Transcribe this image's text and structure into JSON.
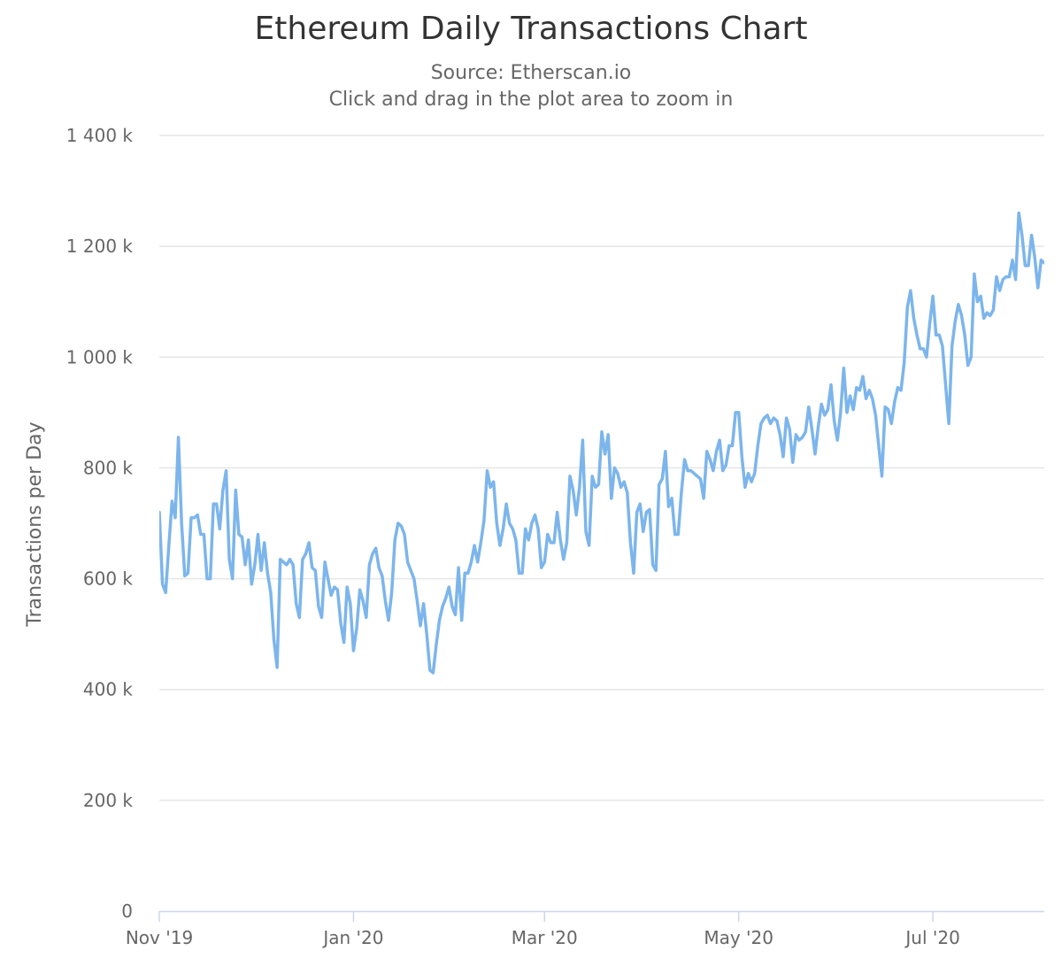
{
  "chart_data": {
    "type": "line",
    "title": "Ethereum Daily Transactions Chart",
    "subtitle": [
      "Source: Etherscan.io",
      "Click and drag in the plot area to zoom in"
    ],
    "xlabel": "",
    "ylabel": "Transactions per Day",
    "ylim": [
      0,
      1400000
    ],
    "xlim": [
      "2019-11-01",
      "2020-08-05"
    ],
    "y_ticks": [
      {
        "value": 0,
        "label": "0"
      },
      {
        "value": 200000,
        "label": "200 k"
      },
      {
        "value": 400000,
        "label": "400 k"
      },
      {
        "value": 600000,
        "label": "600 k"
      },
      {
        "value": 800000,
        "label": "800 k"
      },
      {
        "value": 1000000,
        "label": "1 000 k"
      },
      {
        "value": 1200000,
        "label": "1 200 k"
      },
      {
        "value": 1400000,
        "label": "1 400 k"
      }
    ],
    "x_ticks": [
      {
        "date": "2019-11-01",
        "label": "Nov '19"
      },
      {
        "date": "2020-01-01",
        "label": "Jan '20"
      },
      {
        "date": "2020-03-01",
        "label": "Mar '20"
      },
      {
        "date": "2020-05-01",
        "label": "May '20"
      },
      {
        "date": "2020-07-01",
        "label": "Jul '20"
      }
    ],
    "grid": true,
    "legend": "none",
    "series": [
      {
        "color": "#7cb5ec",
        "x": [
          "2019-11-01",
          "2019-11-02",
          "2019-11-03",
          "2019-11-04",
          "2019-11-05",
          "2019-11-06",
          "2019-11-07",
          "2019-11-08",
          "2019-11-09",
          "2019-11-10",
          "2019-11-11",
          "2019-11-12",
          "2019-11-13",
          "2019-11-14",
          "2019-11-15",
          "2019-11-16",
          "2019-11-17",
          "2019-11-18",
          "2019-11-19",
          "2019-11-20",
          "2019-11-21",
          "2019-11-22",
          "2019-11-23",
          "2019-11-24",
          "2019-11-25",
          "2019-11-26",
          "2019-11-27",
          "2019-11-28",
          "2019-11-29",
          "2019-11-30",
          "2019-12-01",
          "2019-12-02",
          "2019-12-03",
          "2019-12-04",
          "2019-12-05",
          "2019-12-06",
          "2019-12-07",
          "2019-12-08",
          "2019-12-09",
          "2019-12-10",
          "2019-12-11",
          "2019-12-12",
          "2019-12-13",
          "2019-12-14",
          "2019-12-15",
          "2019-12-16",
          "2019-12-17",
          "2019-12-18",
          "2019-12-19",
          "2019-12-20",
          "2019-12-21",
          "2019-12-22",
          "2019-12-23",
          "2019-12-24",
          "2019-12-25",
          "2019-12-26",
          "2019-12-27",
          "2019-12-28",
          "2019-12-29",
          "2019-12-30",
          "2019-12-31",
          "2020-01-01",
          "2020-01-02",
          "2020-01-03",
          "2020-01-04",
          "2020-01-05",
          "2020-01-06",
          "2020-01-07",
          "2020-01-08",
          "2020-01-09",
          "2020-01-10",
          "2020-01-11",
          "2020-01-12",
          "2020-01-13",
          "2020-01-14",
          "2020-01-15",
          "2020-01-16",
          "2020-01-17",
          "2020-01-18",
          "2020-01-19",
          "2020-01-20",
          "2020-01-21",
          "2020-01-22",
          "2020-01-23",
          "2020-01-24",
          "2020-01-25",
          "2020-01-26",
          "2020-01-27",
          "2020-01-28",
          "2020-01-29",
          "2020-01-30",
          "2020-01-31",
          "2020-02-01",
          "2020-02-02",
          "2020-02-03",
          "2020-02-04",
          "2020-02-05",
          "2020-02-06",
          "2020-02-07",
          "2020-02-08",
          "2020-02-09",
          "2020-02-10",
          "2020-02-11",
          "2020-02-12",
          "2020-02-13",
          "2020-02-14",
          "2020-02-15",
          "2020-02-16",
          "2020-02-17",
          "2020-02-18",
          "2020-02-19",
          "2020-02-20",
          "2020-02-21",
          "2020-02-22",
          "2020-02-23",
          "2020-02-24",
          "2020-02-25",
          "2020-02-26",
          "2020-02-27",
          "2020-02-28",
          "2020-02-29",
          "2020-03-01",
          "2020-03-02",
          "2020-03-03",
          "2020-03-04",
          "2020-03-05",
          "2020-03-06",
          "2020-03-07",
          "2020-03-08",
          "2020-03-09",
          "2020-03-10",
          "2020-03-11",
          "2020-03-12",
          "2020-03-13",
          "2020-03-14",
          "2020-03-15",
          "2020-03-16",
          "2020-03-17",
          "2020-03-18",
          "2020-03-19",
          "2020-03-20",
          "2020-03-21",
          "2020-03-22",
          "2020-03-23",
          "2020-03-24",
          "2020-03-25",
          "2020-03-26",
          "2020-03-27",
          "2020-03-28",
          "2020-03-29",
          "2020-03-30",
          "2020-03-31",
          "2020-04-01",
          "2020-04-02",
          "2020-04-03",
          "2020-04-04",
          "2020-04-05",
          "2020-04-06",
          "2020-04-07",
          "2020-04-08",
          "2020-04-09",
          "2020-04-10",
          "2020-04-11",
          "2020-04-12",
          "2020-04-13",
          "2020-04-14",
          "2020-04-15",
          "2020-04-16",
          "2020-04-17",
          "2020-04-18",
          "2020-04-19",
          "2020-04-20",
          "2020-04-21",
          "2020-04-22",
          "2020-04-23",
          "2020-04-24",
          "2020-04-25",
          "2020-04-26",
          "2020-04-27",
          "2020-04-28",
          "2020-04-29",
          "2020-04-30",
          "2020-05-01",
          "2020-05-02",
          "2020-05-03",
          "2020-05-04",
          "2020-05-05",
          "2020-05-06",
          "2020-05-07",
          "2020-05-08",
          "2020-05-09",
          "2020-05-10",
          "2020-05-11",
          "2020-05-12",
          "2020-05-13",
          "2020-05-14",
          "2020-05-15",
          "2020-05-16",
          "2020-05-17",
          "2020-05-18",
          "2020-05-19",
          "2020-05-20",
          "2020-05-21",
          "2020-05-22",
          "2020-05-23",
          "2020-05-24",
          "2020-05-25",
          "2020-05-26",
          "2020-05-27",
          "2020-05-28",
          "2020-05-29",
          "2020-05-30",
          "2020-05-31",
          "2020-06-01",
          "2020-06-02",
          "2020-06-03",
          "2020-06-04",
          "2020-06-05",
          "2020-06-06",
          "2020-06-07",
          "2020-06-08",
          "2020-06-09",
          "2020-06-10",
          "2020-06-11",
          "2020-06-12",
          "2020-06-13",
          "2020-06-14",
          "2020-06-15",
          "2020-06-16",
          "2020-06-17",
          "2020-06-18",
          "2020-06-19",
          "2020-06-20",
          "2020-06-21",
          "2020-06-22",
          "2020-06-23",
          "2020-06-24",
          "2020-06-25",
          "2020-06-26",
          "2020-06-27",
          "2020-06-28",
          "2020-06-29",
          "2020-06-30",
          "2020-07-01",
          "2020-07-02",
          "2020-07-03",
          "2020-07-04",
          "2020-07-05",
          "2020-07-06",
          "2020-07-07",
          "2020-07-08",
          "2020-07-09",
          "2020-07-10",
          "2020-07-11",
          "2020-07-12",
          "2020-07-13",
          "2020-07-14",
          "2020-07-15",
          "2020-07-16",
          "2020-07-17",
          "2020-07-18",
          "2020-07-19",
          "2020-07-20",
          "2020-07-21",
          "2020-07-22",
          "2020-07-23",
          "2020-07-24",
          "2020-07-25",
          "2020-07-26",
          "2020-07-27",
          "2020-07-28",
          "2020-07-29",
          "2020-07-30",
          "2020-07-31",
          "2020-08-01",
          "2020-08-02",
          "2020-08-03",
          "2020-08-04",
          "2020-08-05"
        ],
        "values": [
          720000,
          590000,
          575000,
          660000,
          740000,
          710000,
          855000,
          700000,
          605000,
          610000,
          710000,
          710000,
          715000,
          680000,
          680000,
          600000,
          600000,
          735000,
          735000,
          690000,
          760000,
          795000,
          635000,
          600000,
          760000,
          680000,
          675000,
          625000,
          670000,
          590000,
          625000,
          680000,
          615000,
          665000,
          610000,
          575000,
          490000,
          440000,
          635000,
          630000,
          625000,
          635000,
          625000,
          555000,
          530000,
          635000,
          645000,
          665000,
          620000,
          615000,
          550000,
          530000,
          630000,
          600000,
          570000,
          585000,
          580000,
          520000,
          485000,
          585000,
          555000,
          470000,
          510000,
          580000,
          560000,
          530000,
          625000,
          645000,
          655000,
          620000,
          605000,
          560000,
          525000,
          575000,
          670000,
          700000,
          695000,
          680000,
          630000,
          615000,
          600000,
          560000,
          515000,
          555000,
          500000,
          435000,
          430000,
          480000,
          525000,
          550000,
          565000,
          585000,
          550000,
          535000,
          620000,
          525000,
          610000,
          610000,
          630000,
          660000,
          630000,
          665000,
          705000,
          795000,
          765000,
          775000,
          700000,
          660000,
          690000,
          735000,
          700000,
          690000,
          670000,
          610000,
          610000,
          690000,
          670000,
          700000,
          715000,
          690000,
          620000,
          630000,
          680000,
          665000,
          665000,
          720000,
          670000,
          635000,
          665000,
          785000,
          760000,
          715000,
          765000,
          850000,
          685000,
          660000,
          785000,
          765000,
          770000,
          865000,
          825000,
          860000,
          745000,
          800000,
          790000,
          765000,
          775000,
          755000,
          665000,
          610000,
          720000,
          735000,
          685000,
          720000,
          725000,
          625000,
          615000,
          770000,
          780000,
          830000,
          730000,
          745000,
          680000,
          680000,
          755000,
          815000,
          795000,
          795000,
          790000,
          785000,
          780000,
          745000,
          830000,
          815000,
          795000,
          830000,
          850000,
          795000,
          805000,
          840000,
          840000,
          900000,
          900000,
          820000,
          765000,
          790000,
          775000,
          790000,
          840000,
          880000,
          890000,
          895000,
          880000,
          890000,
          885000,
          860000,
          820000,
          890000,
          870000,
          810000,
          860000,
          850000,
          855000,
          865000,
          910000,
          870000,
          825000,
          875000,
          915000,
          895000,
          905000,
          950000,
          885000,
          850000,
          900000,
          980000,
          900000,
          930000,
          905000,
          945000,
          940000,
          965000,
          925000,
          940000,
          925000,
          895000,
          840000,
          785000,
          910000,
          905000,
          880000,
          920000,
          945000,
          940000,
          990000,
          1090000,
          1120000,
          1070000,
          1040000,
          1015000,
          1015000,
          1000000,
          1060000,
          1110000,
          1040000,
          1040000,
          1020000,
          950000,
          880000,
          1020000,
          1065000,
          1095000,
          1075000,
          1040000,
          985000,
          1000000,
          1150000,
          1100000,
          1110000,
          1070000,
          1080000,
          1075000,
          1085000,
          1145000,
          1120000,
          1140000,
          1145000,
          1145000,
          1175000,
          1140000,
          1260000,
          1220000,
          1165000,
          1165000,
          1220000,
          1180000,
          1125000,
          1175000,
          1170000
        ]
      }
    ]
  }
}
